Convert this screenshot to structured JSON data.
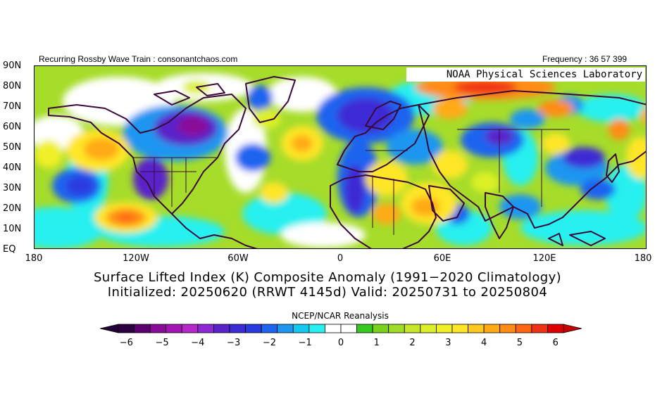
{
  "header": {
    "left_text": "Recurring Rossby Wave Train : consonantchaos.com",
    "right_text": "Frequency : 36 57 399",
    "lab_label": "NOAA Physical Sciences Laboratory"
  },
  "map": {
    "lat_labels": [
      "90N",
      "80N",
      "70N",
      "60N",
      "50N",
      "40N",
      "30N",
      "20N",
      "10N",
      "EQ"
    ],
    "lon_labels": [
      "180",
      "120W",
      "60W",
      "0",
      "60E",
      "120E",
      "180"
    ],
    "extent": {
      "lon": [
        -180,
        180
      ],
      "lat": [
        0,
        90
      ]
    }
  },
  "title": {
    "line1": "Surface Lifted Index (K) Composite Anomaly (1991−2020 Climatology)",
    "line2": "Initialized: 20250620 (RRWT 4145d) Valid: 20250731 to 20250804"
  },
  "source_label": "NCEP/NCAR Reanalysis",
  "colorbar": {
    "tick_labels": [
      "−6",
      "−5",
      "−4",
      "−3",
      "−2",
      "−1",
      "0",
      "1",
      "2",
      "3",
      "4",
      "5",
      "6"
    ],
    "colors": [
      "#2a0040",
      "#5c0070",
      "#8a0a9a",
      "#a414b4",
      "#b427c8",
      "#8c28d4",
      "#5a23c9",
      "#3c2ad4",
      "#2a3ae0",
      "#1e64f0",
      "#1e96f0",
      "#14c8f0",
      "#28f0f0",
      "#ffffff",
      "#ffffff",
      "#34c820",
      "#78d21e",
      "#a0dc28",
      "#c8e628",
      "#dcf028",
      "#f0f028",
      "#ffe628",
      "#ffc81e",
      "#ffaa14",
      "#ff8c14",
      "#ff6414",
      "#f03214",
      "#dc0000"
    ],
    "left_extreme": "#230038",
    "right_extreme": "#c80000"
  }
}
